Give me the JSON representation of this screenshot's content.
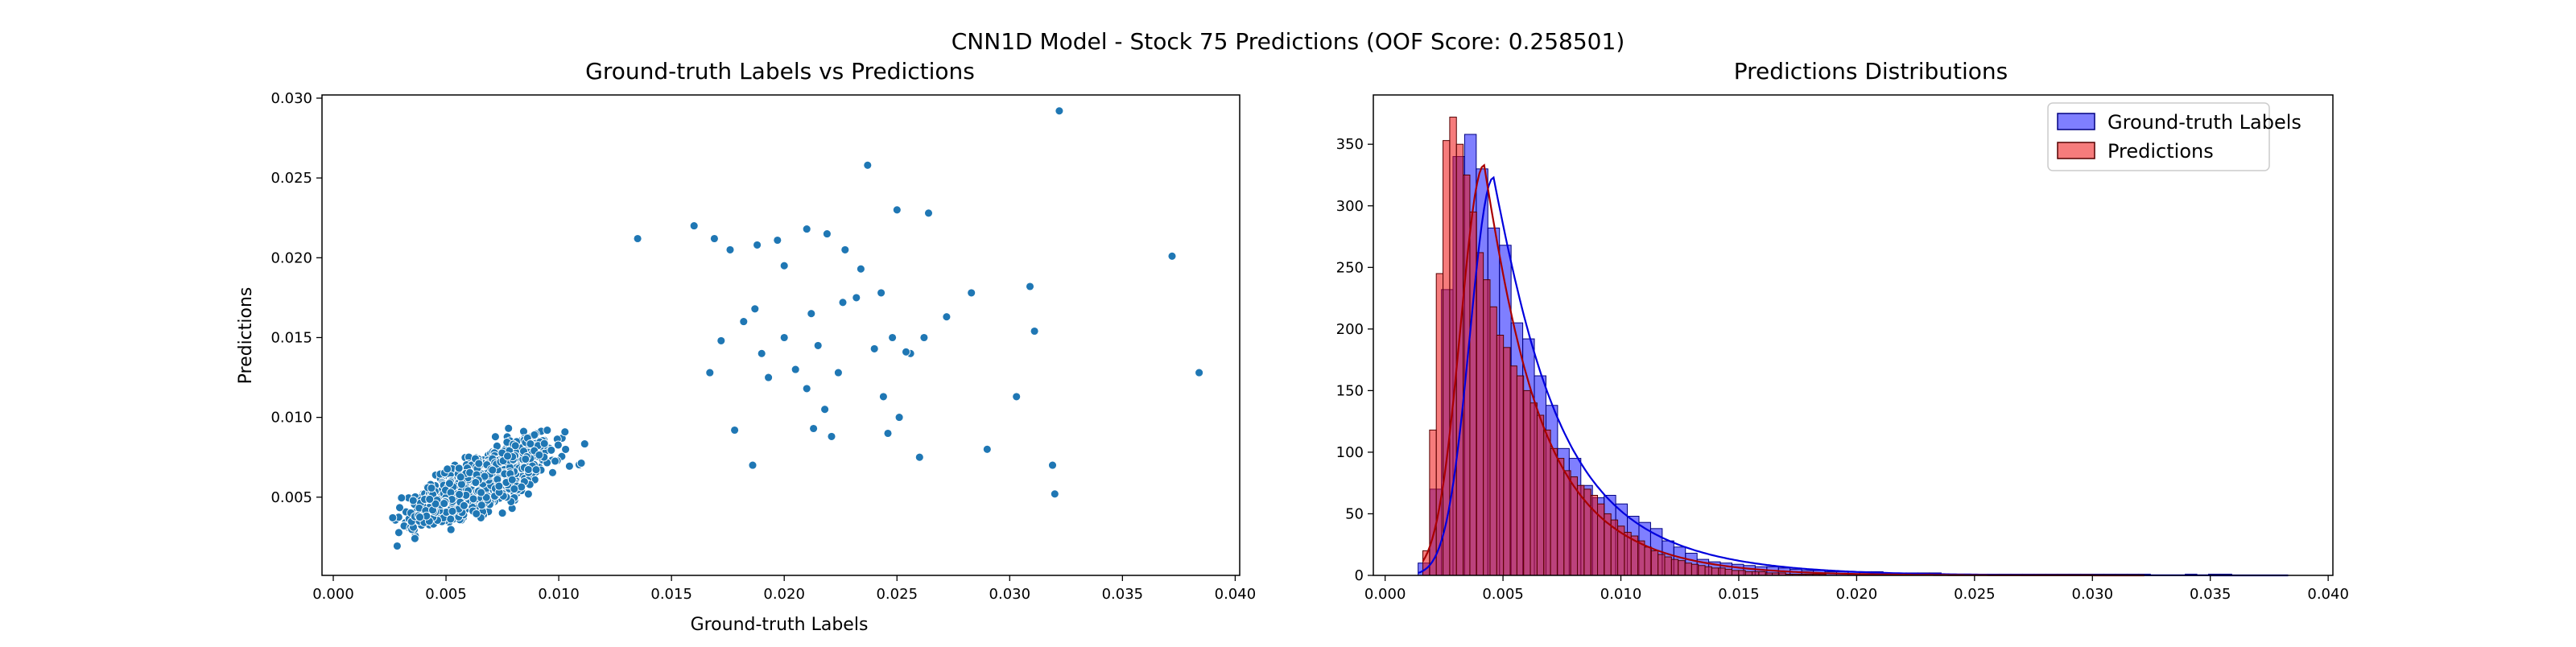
{
  "figure": {
    "suptitle": "CNN1D Model - Stock 75 Predictions (OOF Score: 0.258501)"
  },
  "chart_data": [
    {
      "type": "scatter",
      "title": "Ground-truth Labels vs Predictions",
      "xlabel": "Ground-truth Labels",
      "ylabel": "Predictions",
      "xlim": [
        -0.0005,
        0.0402
      ],
      "ylim": [
        0.0001,
        0.0302
      ],
      "xticks": [
        0.0,
        0.005,
        0.01,
        0.015,
        0.02,
        0.025,
        0.03,
        0.035,
        0.04
      ],
      "xtick_labels": [
        "0.000",
        "0.005",
        "0.010",
        "0.015",
        "0.020",
        "0.025",
        "0.030",
        "0.035",
        "0.040"
      ],
      "yticks": [
        0.005,
        0.01,
        0.015,
        0.02,
        0.025,
        0.03
      ],
      "ytick_labels": [
        "0.005",
        "0.010",
        "0.015",
        "0.020",
        "0.025",
        "0.030"
      ],
      "color": "#1f77b4",
      "cluster": {
        "count": 1500,
        "x_center": 0.0055,
        "y_center": 0.0052,
        "x_spread": 0.0025,
        "slope": 0.62,
        "noise": 0.0014
      },
      "points": [
        [
          0.0322,
          0.0292
        ],
        [
          0.0237,
          0.0258
        ],
        [
          0.025,
          0.023
        ],
        [
          0.0264,
          0.0228
        ],
        [
          0.0372,
          0.0201
        ],
        [
          0.0384,
          0.0128
        ],
        [
          0.0309,
          0.0182
        ],
        [
          0.0311,
          0.0154
        ],
        [
          0.0303,
          0.0113
        ],
        [
          0.029,
          0.008
        ],
        [
          0.0319,
          0.007
        ],
        [
          0.032,
          0.0052
        ],
        [
          0.0283,
          0.0178
        ],
        [
          0.0272,
          0.0163
        ],
        [
          0.0262,
          0.015
        ],
        [
          0.0248,
          0.015
        ],
        [
          0.0243,
          0.0178
        ],
        [
          0.0256,
          0.014
        ],
        [
          0.0232,
          0.0175
        ],
        [
          0.024,
          0.0143
        ],
        [
          0.0226,
          0.0172
        ],
        [
          0.0212,
          0.0165
        ],
        [
          0.02,
          0.0195
        ],
        [
          0.0219,
          0.0215
        ],
        [
          0.021,
          0.0218
        ],
        [
          0.0227,
          0.0205
        ],
        [
          0.0234,
          0.0193
        ],
        [
          0.0188,
          0.0208
        ],
        [
          0.0197,
          0.0211
        ],
        [
          0.0135,
          0.0212
        ],
        [
          0.016,
          0.022
        ],
        [
          0.0169,
          0.0212
        ],
        [
          0.0176,
          0.0205
        ],
        [
          0.0187,
          0.0168
        ],
        [
          0.02,
          0.015
        ],
        [
          0.0215,
          0.0145
        ],
        [
          0.0205,
          0.013
        ],
        [
          0.0224,
          0.0128
        ],
        [
          0.021,
          0.0118
        ],
        [
          0.0218,
          0.0105
        ],
        [
          0.0213,
          0.0093
        ],
        [
          0.0221,
          0.0088
        ],
        [
          0.0246,
          0.009
        ],
        [
          0.0251,
          0.01
        ],
        [
          0.0244,
          0.0113
        ],
        [
          0.026,
          0.0075
        ],
        [
          0.0254,
          0.0141
        ],
        [
          0.0186,
          0.007
        ],
        [
          0.0178,
          0.0092
        ],
        [
          0.0193,
          0.0125
        ],
        [
          0.019,
          0.014
        ],
        [
          0.0182,
          0.016
        ],
        [
          0.0172,
          0.0148
        ],
        [
          0.0167,
          0.0128
        ]
      ]
    },
    {
      "type": "histogram",
      "title": "Predictions Distributions",
      "xlim": [
        -0.0005,
        0.0402
      ],
      "ylim": [
        0,
        390
      ],
      "xticks": [
        0.0,
        0.005,
        0.01,
        0.015,
        0.02,
        0.025,
        0.03,
        0.035,
        0.04
      ],
      "xtick_labels": [
        "0.000",
        "0.005",
        "0.010",
        "0.015",
        "0.020",
        "0.025",
        "0.030",
        "0.035",
        "0.040"
      ],
      "yticks": [
        0,
        50,
        100,
        150,
        200,
        250,
        300,
        350
      ],
      "ytick_labels": [
        "0",
        "50",
        "100",
        "150",
        "200",
        "250",
        "300",
        "350"
      ],
      "legend_position": "upper right",
      "series": [
        {
          "name": "Ground-truth Labels",
          "fill": "#0000ff",
          "fill_opacity": 0.5,
          "edge": "#000080",
          "kde": "#0000dd",
          "bin_start": 0.0014,
          "bin_width": 0.000493,
          "counts": [
            10,
            70,
            232,
            340,
            358,
            330,
            282,
            268,
            205,
            192,
            162,
            138,
            103,
            95,
            73,
            63,
            65,
            58,
            48,
            43,
            38,
            28,
            23,
            18,
            13,
            11,
            10,
            9,
            8,
            7,
            7,
            6,
            5,
            4,
            4,
            3,
            3,
            3,
            3,
            3,
            2,
            2,
            2,
            2,
            2,
            1,
            1,
            1,
            1,
            1,
            1,
            1,
            1,
            1,
            1,
            1,
            1,
            1,
            1,
            1,
            1,
            1,
            1,
            0,
            0,
            0,
            1,
            0,
            1,
            1
          ]
        },
        {
          "name": "Predictions",
          "fill": "#ee1010",
          "fill_opacity": 0.55,
          "edge": "#550000",
          "kde": "#aa0000",
          "bin_start": 0.0016,
          "bin_width": 0.000285,
          "counts": [
            20,
            118,
            245,
            353,
            372,
            350,
            325,
            295,
            262,
            240,
            218,
            195,
            185,
            170,
            162,
            150,
            140,
            130,
            118,
            103,
            95,
            85,
            80,
            73,
            70,
            65,
            58,
            50,
            45,
            40,
            35,
            32,
            28,
            23,
            20,
            17,
            15,
            13,
            12,
            10,
            9,
            8,
            7,
            6,
            6,
            5,
            4,
            4,
            3,
            3,
            3,
            2,
            2,
            2,
            1,
            1,
            1,
            1,
            1,
            1,
            0,
            0,
            0,
            0,
            0,
            1,
            0,
            0,
            0,
            0,
            0,
            0,
            0,
            0,
            1
          ]
        }
      ],
      "kde": {
        "labels": {
          "peak_x": 0.0046,
          "peak_y": 323,
          "left_sd": 0.001,
          "right_scale": 0.0033
        },
        "predictions": {
          "peak_x": 0.0042,
          "peak_y": 333,
          "left_sd": 0.001,
          "right_scale": 0.0028
        }
      }
    }
  ]
}
